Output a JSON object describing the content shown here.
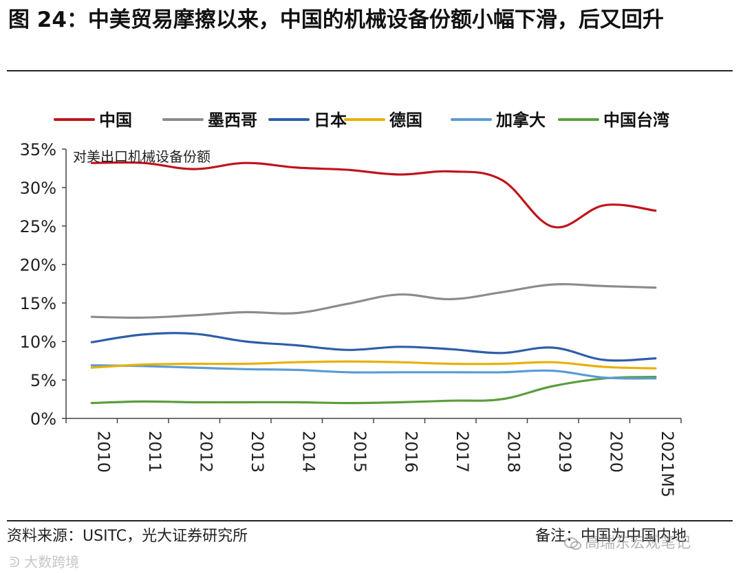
{
  "figure": {
    "title": "图 24：中美贸易摩擦以来，中国的机械设备份额小幅下滑，后又回升",
    "source": "资料来源：USITC，光大证券研究所",
    "note": "备注：中国为中国内地",
    "watermark_brand": "高瑞东宏观笔记",
    "watermark_corner": "大数跨境"
  },
  "chart_data": {
    "type": "line",
    "title": "对美出口机械设备份额",
    "xlabel": "",
    "ylabel": "对美出口机械设备份额",
    "categories": [
      "2010",
      "2011",
      "2012",
      "2013",
      "2014",
      "2015",
      "2016",
      "2017",
      "2018",
      "2019",
      "2020",
      "2021M5"
    ],
    "ylim": [
      0,
      35
    ],
    "yticks": [
      "0%",
      "5%",
      "10%",
      "15%",
      "20%",
      "25%",
      "30%",
      "35%"
    ],
    "ytick_values": [
      0,
      5,
      10,
      15,
      20,
      25,
      30,
      35
    ],
    "legend_position": "top",
    "series": [
      {
        "name": "中国",
        "color": "#c0141c",
        "values": [
          33.2,
          33.2,
          32.4,
          33.2,
          32.6,
          32.3,
          31.7,
          32.1,
          31.0,
          24.9,
          27.7,
          27.0
        ]
      },
      {
        "name": "墨西哥",
        "color": "#8c8c8c",
        "values": [
          13.2,
          13.1,
          13.4,
          13.8,
          13.7,
          14.9,
          16.1,
          15.5,
          16.4,
          17.4,
          17.2,
          17.0
        ]
      },
      {
        "name": "日本",
        "color": "#2e5da8",
        "values": [
          9.9,
          10.9,
          11.0,
          10.0,
          9.5,
          8.9,
          9.3,
          9.0,
          8.5,
          9.2,
          7.6,
          7.8
        ]
      },
      {
        "name": "德国",
        "color": "#e8b007",
        "values": [
          6.6,
          7.0,
          7.1,
          7.1,
          7.3,
          7.4,
          7.3,
          7.1,
          7.1,
          7.3,
          6.7,
          6.5
        ]
      },
      {
        "name": "加拿大",
        "color": "#5b9bd5",
        "values": [
          6.9,
          6.8,
          6.6,
          6.4,
          6.3,
          6.0,
          6.0,
          6.0,
          6.0,
          6.2,
          5.3,
          5.2
        ]
      },
      {
        "name": "中国台湾",
        "color": "#5a9e3c",
        "values": [
          2.0,
          2.2,
          2.1,
          2.1,
          2.1,
          2.0,
          2.1,
          2.3,
          2.5,
          4.2,
          5.2,
          5.4
        ]
      }
    ]
  }
}
